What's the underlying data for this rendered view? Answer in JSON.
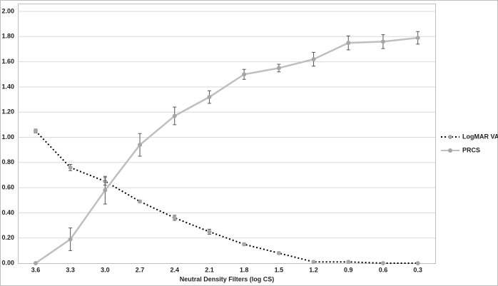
{
  "chart_data": {
    "type": "line",
    "x_label": "Neutral Density Filters (log CS)",
    "categories": [
      "3.6",
      "3.3",
      "3.0",
      "2.7",
      "2.4",
      "2.1",
      "1.8",
      "1.5",
      "1.2",
      "0.9",
      "0.6",
      "0.3"
    ],
    "series": [
      {
        "name": "LogMAR VA",
        "color": "#000000",
        "dash": true,
        "values": [
          1.05,
          0.76,
          0.65,
          0.49,
          0.36,
          0.25,
          0.15,
          0.08,
          0.01,
          0.01,
          0.0,
          0.0
        ],
        "errors": [
          0.015,
          0.025,
          0.03,
          0.01,
          0.02,
          0.02,
          0.01,
          0.01,
          0.005,
          0.005,
          0,
          0
        ]
      },
      {
        "name": "PRCS",
        "color": "#bfbfbf",
        "dash": false,
        "values": [
          0.0,
          0.19,
          0.58,
          0.94,
          1.17,
          1.32,
          1.5,
          1.55,
          1.62,
          1.75,
          1.76,
          1.79
        ],
        "errors": [
          0,
          0.09,
          0.11,
          0.09,
          0.07,
          0.05,
          0.04,
          0.03,
          0.055,
          0.055,
          0.055,
          0.05
        ]
      }
    ],
    "ylim": [
      0,
      2
    ],
    "yticks": [
      {
        "value": 0,
        "label": "0.00"
      },
      {
        "value": 0.2,
        "label": "0.20"
      },
      {
        "value": 0.4,
        "label": "0.40"
      },
      {
        "value": 0.6,
        "label": "0.60"
      },
      {
        "value": 0.8,
        "label": "0.80"
      },
      {
        "value": 1.0,
        "label": "1.00"
      },
      {
        "value": 1.2,
        "label": "1.20"
      },
      {
        "value": 1.4,
        "label": "1.40"
      },
      {
        "value": 1.6,
        "label": "1.60"
      },
      {
        "value": 1.8,
        "label": "1.80"
      },
      {
        "value": 2.0,
        "label": "2.00"
      }
    ],
    "grid": true
  }
}
